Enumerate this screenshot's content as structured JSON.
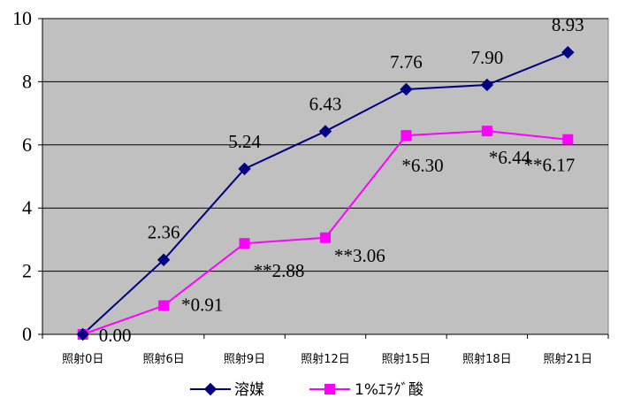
{
  "chart_data": {
    "type": "line",
    "categories": [
      "照射0日",
      "照射6日",
      "照射9日",
      "照射12日",
      "照射15日",
      "照射18日",
      "照射21日"
    ],
    "ylim": [
      0,
      10
    ],
    "yticks": [
      "0",
      "2",
      "4",
      "6",
      "8",
      "10"
    ],
    "grid": true,
    "legend_position": "bottom",
    "series": [
      {
        "name": "溶媒",
        "color": "#000080",
        "marker": "diamond",
        "values": [
          0.0,
          2.36,
          5.24,
          6.43,
          7.76,
          7.9,
          8.93
        ],
        "labels": [
          "",
          "2.36",
          "5.24",
          "6.43",
          "7.76",
          "7.90",
          "8.93"
        ]
      },
      {
        "name": "1%ｴﾗｸﾞ酸",
        "color": "#ff00ff",
        "marker": "square",
        "values": [
          0.0,
          0.91,
          2.88,
          3.06,
          6.3,
          6.44,
          6.17
        ],
        "labels": [
          "0.00",
          "*0.91",
          "**2.88",
          "**3.06",
          "*6.30",
          "*6.44",
          "**6.17"
        ]
      }
    ]
  },
  "colors": {
    "plot_background": "#c0c0c0",
    "gridline": "#000000"
  }
}
